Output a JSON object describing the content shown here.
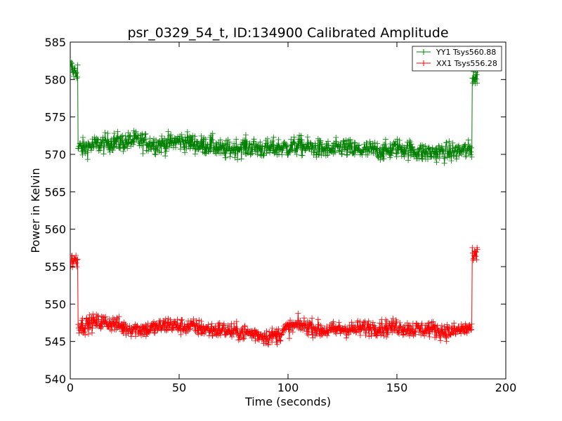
{
  "chart_data": {
    "type": "line",
    "title": "psr_0329_54_t, ID:134900 Calibrated Amplitude",
    "xlabel": "Time (seconds)",
    "ylabel": "Power in Kelvin",
    "xlim": [
      0,
      200
    ],
    "ylim": [
      540,
      585
    ],
    "xticks": [
      "0",
      "50",
      "100",
      "150",
      "200"
    ],
    "yticks": [
      "540",
      "545",
      "550",
      "555",
      "560",
      "565",
      "570",
      "575",
      "580",
      "585"
    ],
    "grid": false,
    "legend_position": "top-right",
    "marker": "plus",
    "series": [
      {
        "name": "YY1 Tsys560.88",
        "color": "#008000",
        "x": [
          0,
          1,
          2,
          3,
          4,
          6,
          10,
          15,
          20,
          25,
          30,
          35,
          40,
          45,
          50,
          55,
          60,
          65,
          70,
          75,
          80,
          85,
          90,
          95,
          100,
          105,
          110,
          115,
          120,
          125,
          130,
          135,
          140,
          145,
          150,
          155,
          160,
          165,
          170,
          175,
          180,
          184,
          185,
          186,
          187
        ],
        "values": [
          581.8,
          581.3,
          581.0,
          581.2,
          570.9,
          570.8,
          571.2,
          571.4,
          571.7,
          571.6,
          571.9,
          571.6,
          571.3,
          571.5,
          571.8,
          571.6,
          571.2,
          571.3,
          570.5,
          570.8,
          571.0,
          570.9,
          570.7,
          570.9,
          570.9,
          571.2,
          570.9,
          570.7,
          570.5,
          571.0,
          570.6,
          570.5,
          570.6,
          570.4,
          570.9,
          570.7,
          570.3,
          570.2,
          570.3,
          570.3,
          570.5,
          570.5,
          580.5,
          580.1,
          580.3
        ],
        "noise": 1.4
      },
      {
        "name": "XX1 Tsys556.28",
        "color": "#ff0000",
        "x": [
          0,
          1,
          2,
          3,
          4,
          6,
          10,
          15,
          20,
          25,
          30,
          35,
          40,
          45,
          50,
          55,
          60,
          65,
          70,
          75,
          80,
          85,
          90,
          95,
          100,
          105,
          110,
          115,
          120,
          125,
          130,
          135,
          140,
          145,
          150,
          155,
          160,
          165,
          170,
          175,
          180,
          184,
          185,
          186,
          187
        ],
        "values": [
          556.0,
          555.8,
          555.9,
          555.9,
          547.2,
          547.1,
          547.5,
          547.6,
          547.4,
          546.8,
          546.7,
          546.6,
          546.9,
          547.3,
          547.0,
          547.0,
          546.8,
          546.5,
          546.6,
          546.3,
          546.2,
          546.0,
          545.6,
          545.8,
          546.8,
          547.2,
          547.0,
          546.5,
          546.5,
          546.7,
          546.6,
          546.8,
          546.9,
          546.8,
          547.0,
          546.7,
          546.6,
          546.7,
          546.4,
          546.3,
          546.6,
          546.8,
          556.2,
          556.3,
          556.6
        ],
        "noise": 1.2
      }
    ]
  }
}
